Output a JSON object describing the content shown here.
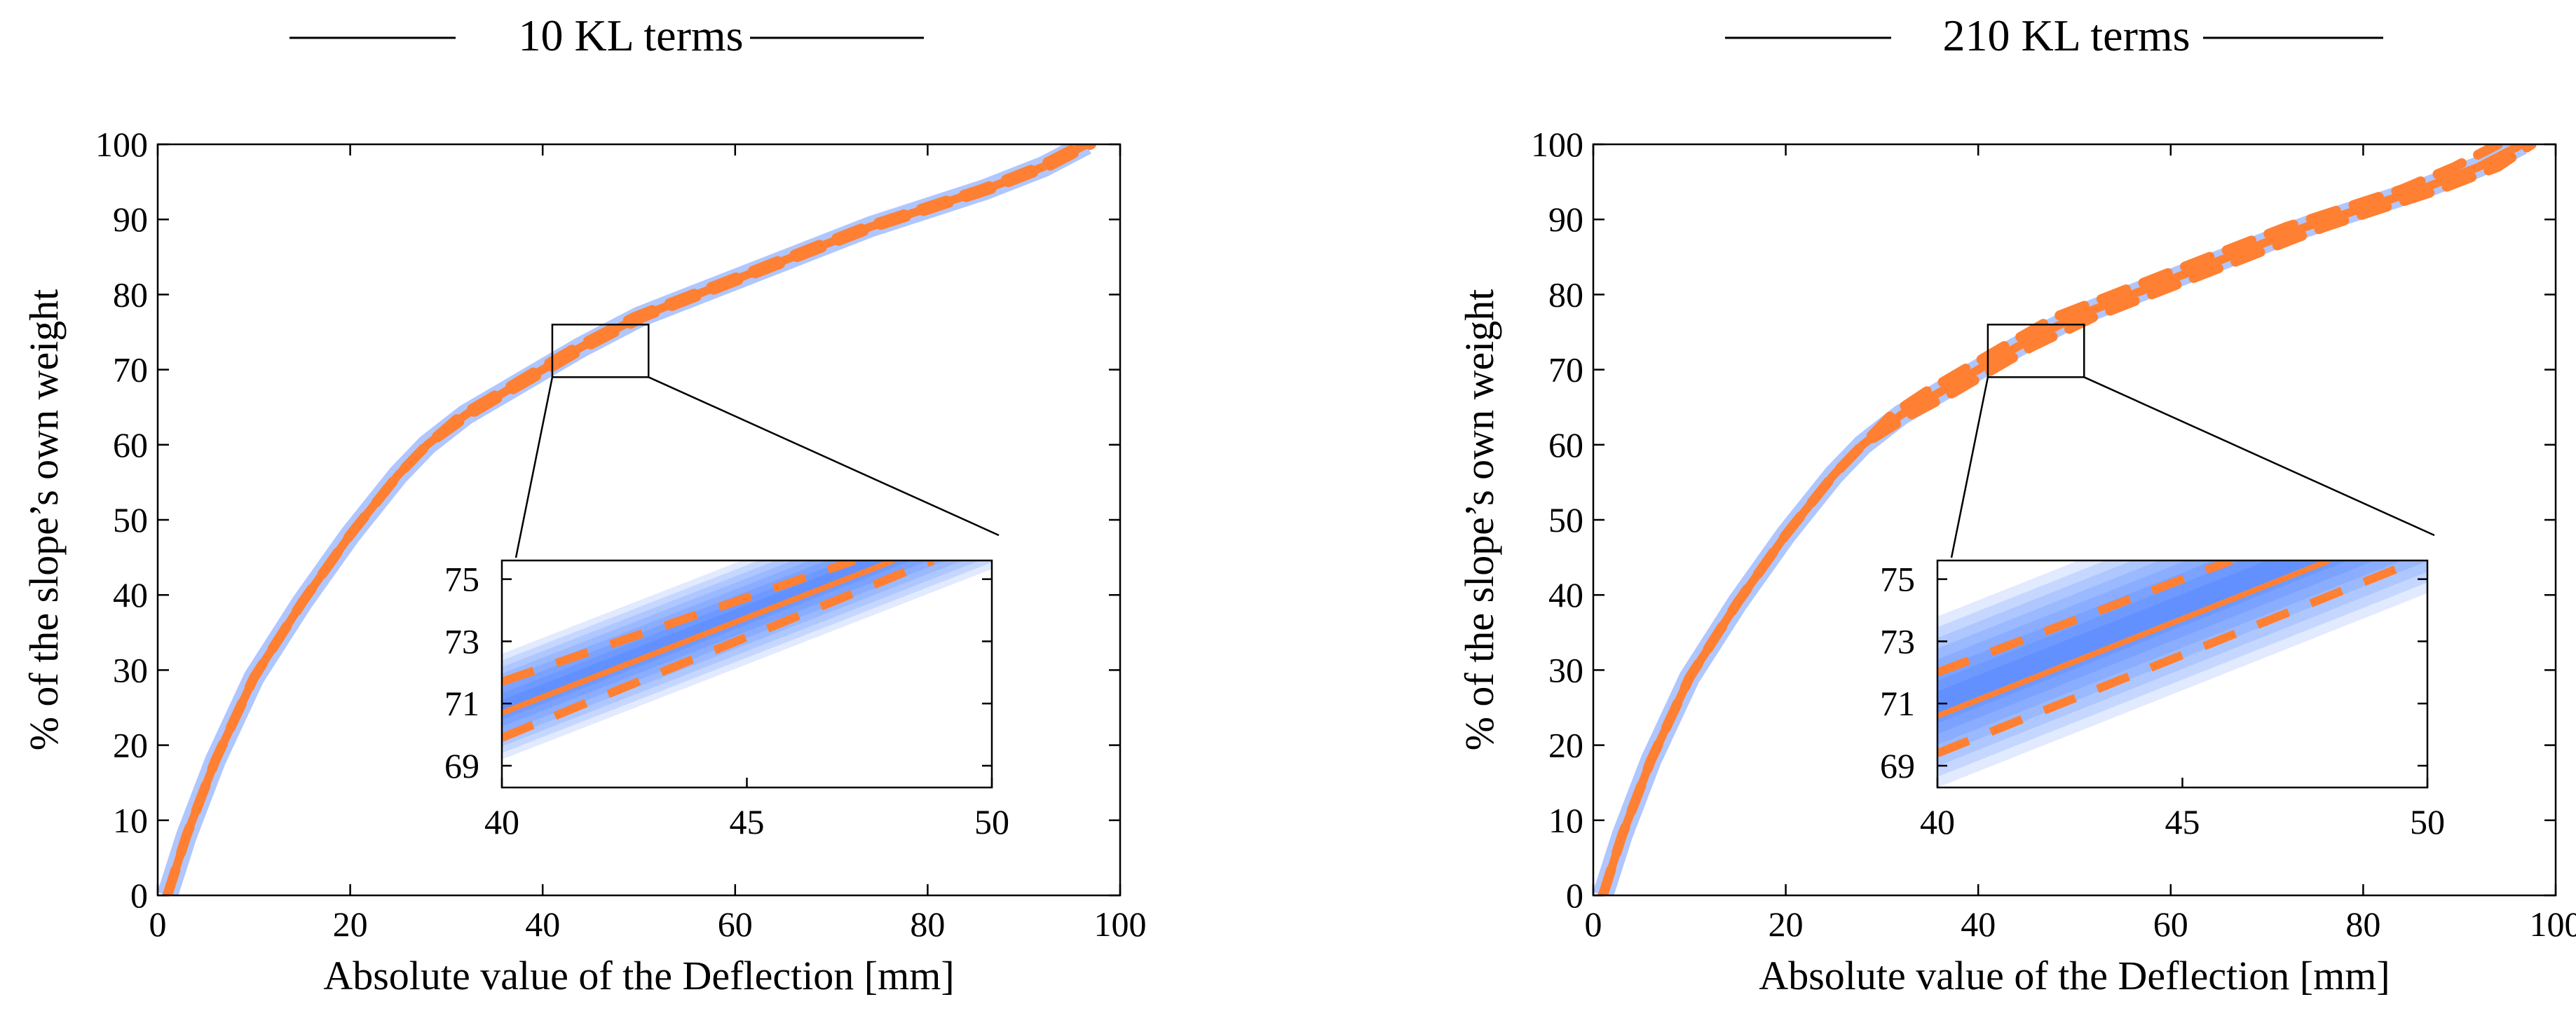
{
  "colors": {
    "mean_line": "#ff8033",
    "band": "#1a5cff",
    "axes": "#000000",
    "background": "#ffffff"
  },
  "chart_data": [
    {
      "type": "line",
      "title": "10 KL terms",
      "xlabel": "Absolute value of the Deflection [mm]",
      "ylabel": "% of the slope’s own weight",
      "xlim": [
        0,
        100
      ],
      "ylim": [
        0,
        100
      ],
      "xticks": [
        0,
        20,
        40,
        60,
        80,
        100
      ],
      "yticks": [
        0,
        10,
        20,
        30,
        40,
        50,
        60,
        70,
        80,
        90,
        100
      ],
      "grid": false,
      "series": [
        {
          "style": "solid",
          "x": [
            1,
            3,
            6,
            10,
            15,
            20,
            25,
            28,
            32,
            36,
            40,
            44,
            50,
            56,
            62,
            68,
            74,
            80,
            86,
            92,
            96.5
          ],
          "y": [
            0,
            8,
            18,
            29,
            39,
            48,
            56,
            60,
            64,
            67,
            70,
            73,
            77,
            80,
            83,
            86,
            89,
            91.5,
            94,
            97,
            100
          ]
        },
        {
          "style": "dashed",
          "x": [
            1,
            3,
            6,
            10,
            15,
            20,
            25,
            28,
            31.6,
            35.6,
            39.5,
            43.5,
            49.5,
            55.5,
            61.5,
            67.5,
            73.5,
            79.5,
            85.5,
            91.5,
            96
          ],
          "y": [
            0,
            8,
            18,
            29,
            39,
            48,
            56,
            60,
            64,
            67,
            70,
            73,
            77,
            80,
            83,
            86,
            89,
            91.5,
            94,
            97,
            100
          ]
        },
        {
          "style": "dashed",
          "x": [
            1,
            3,
            6,
            10,
            15,
            20,
            25,
            28,
            32.4,
            36.4,
            40.5,
            44.5,
            50.5,
            56.5,
            62.5,
            68.5,
            74.5,
            80.5,
            86.5,
            92.5,
            97
          ],
          "y": [
            0,
            8,
            18,
            29,
            39,
            48,
            56,
            60,
            64,
            67,
            70,
            73,
            77,
            80,
            83,
            86,
            89,
            91.5,
            94,
            97,
            100
          ]
        }
      ],
      "inset": {
        "xlim": [
          40,
          50
        ],
        "ylim": [
          68.3,
          75.6
        ],
        "xticks": [
          40,
          45,
          50
        ],
        "yticks": [
          69,
          71,
          73,
          75
        ],
        "zoom_box": {
          "x": [
            41,
            51
          ],
          "y": [
            69,
            76
          ]
        },
        "mean": {
          "x": [
            40,
            48
          ],
          "y": [
            70.7,
            75.6
          ]
        },
        "upper": {
          "x": [
            40,
            47.2
          ],
          "y": [
            71.7,
            75.6
          ]
        },
        "lower": {
          "x": [
            40,
            48.8
          ],
          "y": [
            69.9,
            75.6
          ]
        },
        "band": {
          "x": [
            40,
            50
          ],
          "y_low": [
            69.2,
            75.6
          ],
          "y_high": [
            72.6,
            75.6
          ]
        }
      }
    },
    {
      "type": "line",
      "title": "210 KL terms",
      "xlabel": "Absolute value of the Deflection [mm]",
      "ylabel": "% of the slope’s own weight",
      "xlim": [
        0,
        100
      ],
      "ylim": [
        0,
        100
      ],
      "xticks": [
        0,
        20,
        40,
        60,
        80,
        100
      ],
      "yticks": [
        0,
        10,
        20,
        30,
        40,
        50,
        60,
        70,
        80,
        90,
        100
      ],
      "grid": false,
      "series": [
        {
          "style": "solid",
          "x": [
            1,
            3,
            6,
            10,
            15,
            20,
            25,
            28,
            32,
            36,
            40,
            44,
            50,
            56,
            62,
            68,
            74,
            80,
            86,
            92,
            96.5
          ],
          "y": [
            0,
            8,
            18,
            29,
            39,
            48,
            56,
            60,
            64,
            67,
            70,
            73,
            77,
            80,
            83,
            86,
            89,
            91.5,
            94,
            97,
            100
          ]
        },
        {
          "style": "dashed",
          "x": [
            1,
            3,
            6,
            10,
            15,
            20,
            25,
            28,
            31,
            34.5,
            38.5,
            42.5,
            48,
            54,
            60,
            66,
            72,
            78,
            84,
            89.5,
            94
          ],
          "y": [
            0,
            8,
            18,
            29,
            39,
            48,
            56,
            60,
            64,
            67,
            70,
            73,
            77,
            80,
            83,
            86,
            89,
            91.5,
            94,
            97,
            100
          ]
        },
        {
          "style": "dashed",
          "x": [
            1,
            3,
            6,
            10,
            15,
            20,
            25,
            28,
            33,
            37.5,
            41.5,
            45.5,
            52,
            58,
            64,
            70,
            76,
            82,
            88,
            94,
            97.5
          ],
          "y": [
            0,
            8,
            18,
            29,
            39,
            48,
            56,
            60,
            64,
            67,
            70,
            73,
            77,
            80,
            83,
            86,
            89,
            91.5,
            94,
            97,
            100
          ]
        }
      ],
      "inset": {
        "xlim": [
          40,
          50
        ],
        "ylim": [
          68.3,
          75.6
        ],
        "xticks": [
          40,
          45,
          50
        ],
        "yticks": [
          69,
          71,
          73,
          75
        ],
        "zoom_box": {
          "x": [
            41,
            51
          ],
          "y": [
            69,
            76
          ]
        },
        "mean": {
          "x": [
            40,
            48
          ],
          "y": [
            70.6,
            75.6
          ]
        },
        "upper": {
          "x": [
            40,
            46
          ],
          "y": [
            72.0,
            75.6
          ]
        },
        "lower": {
          "x": [
            40,
            49.8
          ],
          "y": [
            69.4,
            75.6
          ]
        },
        "band": {
          "x": [
            40,
            50
          ],
          "y_low": [
            68.3,
            75.6
          ],
          "y_high": [
            73.8,
            75.6
          ]
        }
      }
    }
  ]
}
